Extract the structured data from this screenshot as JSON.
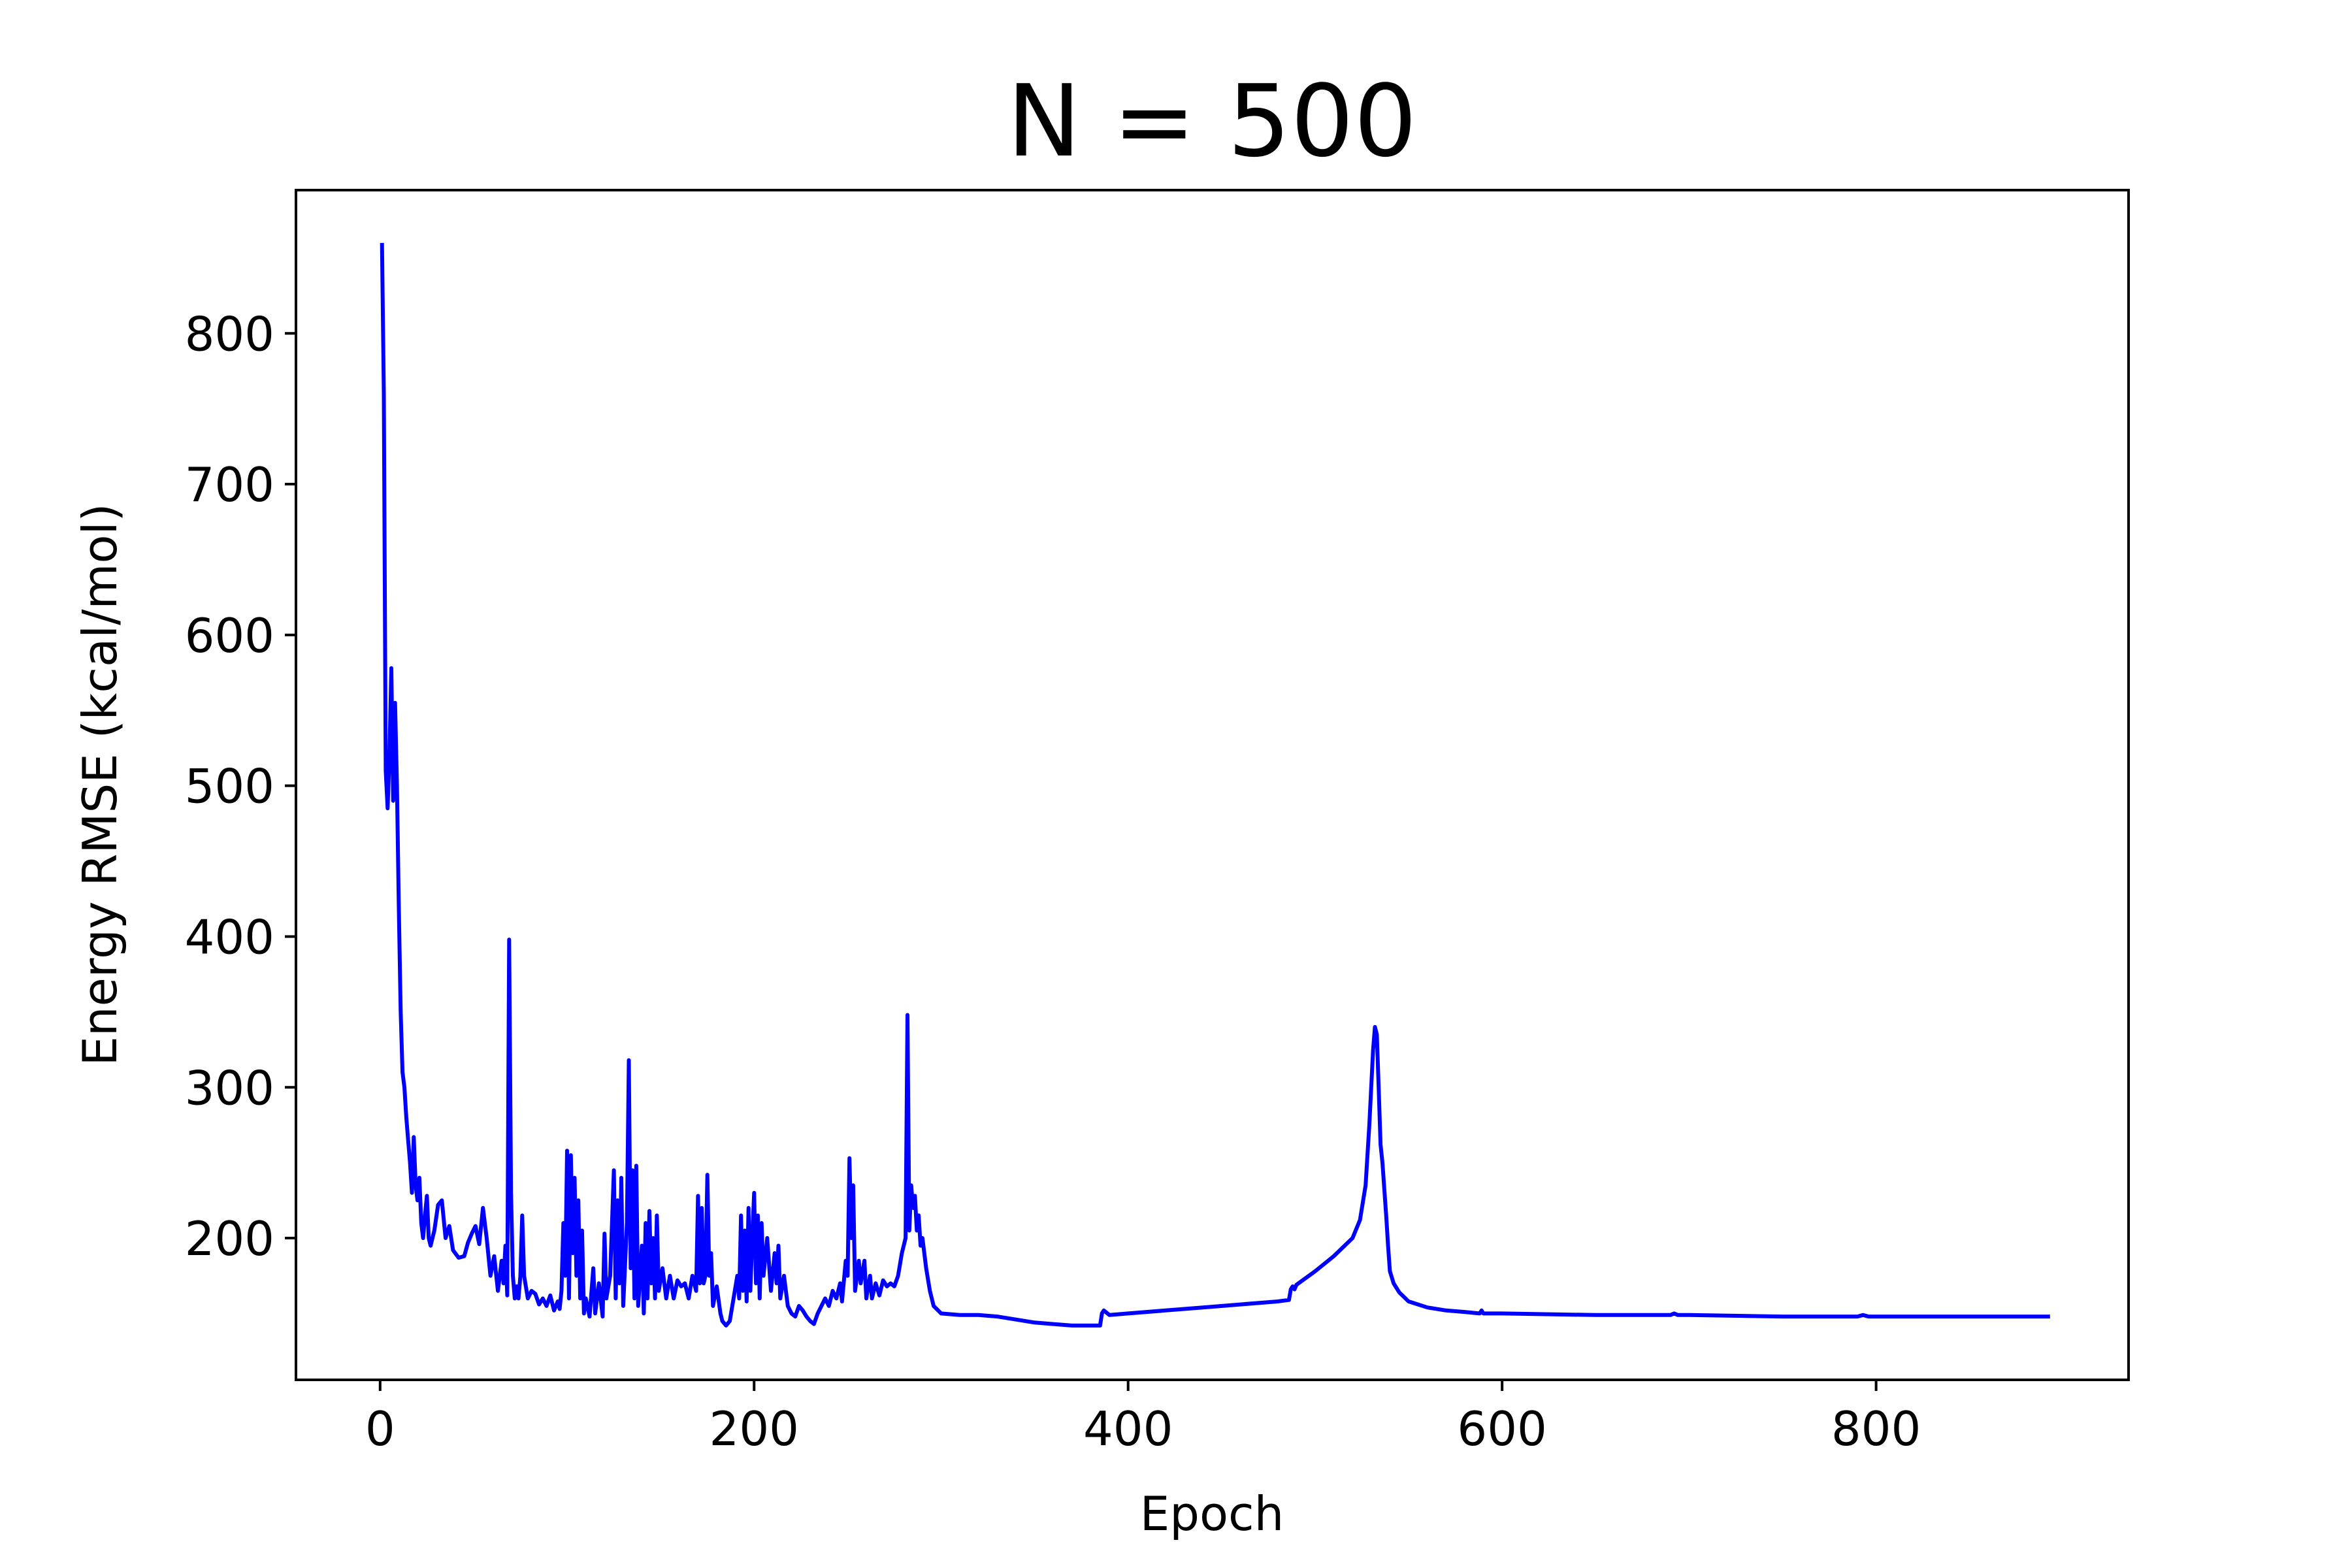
{
  "chart_data": {
    "type": "line",
    "title": "N = 500",
    "xlabel": "Epoch",
    "ylabel": "Energy RMSE (kcal/mol)",
    "xlim": [
      -45,
      935
    ],
    "ylim": [
      106,
      895
    ],
    "xticks": [
      0,
      200,
      400,
      600,
      800
    ],
    "yticks": [
      200,
      300,
      400,
      500,
      600,
      700,
      800
    ],
    "grid": false,
    "legend": null,
    "series": [
      {
        "color": "#0000ff",
        "points": [
          [
            1,
            860
          ],
          [
            2,
            760
          ],
          [
            3,
            510
          ],
          [
            4,
            485
          ],
          [
            5,
            520
          ],
          [
            6,
            578
          ],
          [
            7,
            490
          ],
          [
            8,
            555
          ],
          [
            9,
            500
          ],
          [
            10,
            420
          ],
          [
            11,
            350
          ],
          [
            12,
            310
          ],
          [
            13,
            300
          ],
          [
            14,
            280
          ],
          [
            15,
            265
          ],
          [
            16,
            250
          ],
          [
            17,
            230
          ],
          [
            18,
            267
          ],
          [
            19,
            235
          ],
          [
            20,
            225
          ],
          [
            21,
            240
          ],
          [
            22,
            210
          ],
          [
            23,
            200
          ],
          [
            24,
            215
          ],
          [
            25,
            228
          ],
          [
            26,
            200
          ],
          [
            27,
            195
          ],
          [
            29,
            205
          ],
          [
            31,
            222
          ],
          [
            33,
            225
          ],
          [
            35,
            200
          ],
          [
            37,
            208
          ],
          [
            39,
            192
          ],
          [
            42,
            187
          ],
          [
            45,
            188
          ],
          [
            47,
            197
          ],
          [
            49,
            203
          ],
          [
            51,
            208
          ],
          [
            53,
            196
          ],
          [
            55,
            220
          ],
          [
            57,
            200
          ],
          [
            59,
            175
          ],
          [
            61,
            188
          ],
          [
            63,
            165
          ],
          [
            65,
            185
          ],
          [
            66,
            170
          ],
          [
            67,
            195
          ],
          [
            68,
            162
          ],
          [
            69,
            398
          ],
          [
            70,
            230
          ],
          [
            71,
            175
          ],
          [
            72,
            160
          ],
          [
            73,
            168
          ],
          [
            74,
            160
          ],
          [
            75,
            175
          ],
          [
            76,
            215
          ],
          [
            77,
            175
          ],
          [
            79,
            160
          ],
          [
            81,
            165
          ],
          [
            83,
            163
          ],
          [
            85,
            156
          ],
          [
            87,
            160
          ],
          [
            89,
            155
          ],
          [
            91,
            162
          ],
          [
            93,
            152
          ],
          [
            95,
            158
          ],
          [
            96,
            153
          ],
          [
            97,
            165
          ],
          [
            98,
            210
          ],
          [
            99,
            175
          ],
          [
            100,
            258
          ],
          [
            101,
            160
          ],
          [
            102,
            255
          ],
          [
            103,
            190
          ],
          [
            104,
            240
          ],
          [
            105,
            175
          ],
          [
            106,
            225
          ],
          [
            107,
            160
          ],
          [
            108,
            205
          ],
          [
            109,
            150
          ],
          [
            110,
            160
          ],
          [
            112,
            148
          ],
          [
            114,
            180
          ],
          [
            115,
            150
          ],
          [
            117,
            170
          ],
          [
            119,
            148
          ],
          [
            120,
            203
          ],
          [
            121,
            160
          ],
          [
            123,
            175
          ],
          [
            125,
            245
          ],
          [
            126,
            160
          ],
          [
            127,
            225
          ],
          [
            128,
            170
          ],
          [
            129,
            240
          ],
          [
            130,
            155
          ],
          [
            132,
            210
          ],
          [
            133,
            318
          ],
          [
            134,
            180
          ],
          [
            135,
            245
          ],
          [
            136,
            160
          ],
          [
            137,
            248
          ],
          [
            138,
            155
          ],
          [
            140,
            195
          ],
          [
            141,
            150
          ],
          [
            142,
            210
          ],
          [
            143,
            160
          ],
          [
            144,
            218
          ],
          [
            145,
            170
          ],
          [
            146,
            200
          ],
          [
            147,
            160
          ],
          [
            148,
            215
          ],
          [
            149,
            165
          ],
          [
            151,
            180
          ],
          [
            153,
            160
          ],
          [
            155,
            175
          ],
          [
            157,
            160
          ],
          [
            159,
            172
          ],
          [
            161,
            168
          ],
          [
            163,
            170
          ],
          [
            165,
            160
          ],
          [
            167,
            175
          ],
          [
            169,
            165
          ],
          [
            170,
            228
          ],
          [
            171,
            170
          ],
          [
            172,
            220
          ],
          [
            173,
            170
          ],
          [
            174,
            175
          ],
          [
            175,
            242
          ],
          [
            176,
            175
          ],
          [
            177,
            190
          ],
          [
            178,
            155
          ],
          [
            180,
            168
          ],
          [
            182,
            150
          ],
          [
            183,
            145
          ],
          [
            185,
            142
          ],
          [
            187,
            145
          ],
          [
            189,
            160
          ],
          [
            191,
            175
          ],
          [
            192,
            160
          ],
          [
            193,
            215
          ],
          [
            194,
            165
          ],
          [
            195,
            205
          ],
          [
            196,
            158
          ],
          [
            197,
            220
          ],
          [
            198,
            165
          ],
          [
            199,
            200
          ],
          [
            200,
            230
          ],
          [
            201,
            170
          ],
          [
            202,
            215
          ],
          [
            203,
            160
          ],
          [
            204,
            210
          ],
          [
            205,
            175
          ],
          [
            207,
            200
          ],
          [
            209,
            165
          ],
          [
            211,
            190
          ],
          [
            212,
            170
          ],
          [
            213,
            195
          ],
          [
            214,
            160
          ],
          [
            216,
            175
          ],
          [
            218,
            155
          ],
          [
            220,
            150
          ],
          [
            222,
            148
          ],
          [
            224,
            155
          ],
          [
            226,
            152
          ],
          [
            228,
            148
          ],
          [
            230,
            145
          ],
          [
            232,
            143
          ],
          [
            234,
            150
          ],
          [
            236,
            155
          ],
          [
            238,
            160
          ],
          [
            240,
            155
          ],
          [
            242,
            165
          ],
          [
            244,
            160
          ],
          [
            246,
            170
          ],
          [
            247,
            158
          ],
          [
            249,
            185
          ],
          [
            250,
            175
          ],
          [
            251,
            253
          ],
          [
            252,
            200
          ],
          [
            253,
            235
          ],
          [
            254,
            165
          ],
          [
            256,
            185
          ],
          [
            257,
            170
          ],
          [
            259,
            185
          ],
          [
            260,
            160
          ],
          [
            262,
            175
          ],
          [
            263,
            160
          ],
          [
            265,
            170
          ],
          [
            267,
            162
          ],
          [
            269,
            172
          ],
          [
            271,
            168
          ],
          [
            273,
            170
          ],
          [
            275,
            168
          ],
          [
            277,
            175
          ],
          [
            279,
            190
          ],
          [
            281,
            200
          ],
          [
            282,
            348
          ],
          [
            283,
            205
          ],
          [
            284,
            235
          ],
          [
            285,
            220
          ],
          [
            286,
            228
          ],
          [
            287,
            205
          ],
          [
            288,
            215
          ],
          [
            289,
            195
          ],
          [
            290,
            200
          ],
          [
            292,
            180
          ],
          [
            294,
            165
          ],
          [
            296,
            155
          ],
          [
            300,
            150
          ],
          [
            310,
            149
          ],
          [
            320,
            149
          ],
          [
            330,
            148
          ],
          [
            340,
            146
          ],
          [
            350,
            144
          ],
          [
            360,
            143
          ],
          [
            370,
            142
          ],
          [
            385,
            142
          ],
          [
            386,
            150
          ],
          [
            387,
            152
          ],
          [
            388,
            151
          ],
          [
            390,
            149
          ],
          [
            400,
            150
          ],
          [
            420,
            152
          ],
          [
            440,
            154
          ],
          [
            460,
            156
          ],
          [
            480,
            158
          ],
          [
            486,
            159
          ],
          [
            487,
            166
          ],
          [
            488,
            168
          ],
          [
            489,
            166
          ],
          [
            490,
            169
          ],
          [
            500,
            178
          ],
          [
            510,
            188
          ],
          [
            520,
            200
          ],
          [
            524,
            212
          ],
          [
            527,
            235
          ],
          [
            529,
            275
          ],
          [
            531,
            325
          ],
          [
            532,
            340
          ],
          [
            533,
            335
          ],
          [
            534,
            300
          ],
          [
            535,
            262
          ],
          [
            536,
            250
          ],
          [
            538,
            215
          ],
          [
            539,
            195
          ],
          [
            540,
            178
          ],
          [
            542,
            170
          ],
          [
            545,
            164
          ],
          [
            550,
            158
          ],
          [
            560,
            154
          ],
          [
            570,
            152
          ],
          [
            580,
            151
          ],
          [
            588,
            150
          ],
          [
            589,
            152
          ],
          [
            590,
            150
          ],
          [
            600,
            150
          ],
          [
            650,
            149
          ],
          [
            690,
            149
          ],
          [
            692,
            150
          ],
          [
            694,
            149
          ],
          [
            700,
            149
          ],
          [
            750,
            148
          ],
          [
            790,
            148
          ],
          [
            793,
            149
          ],
          [
            796,
            148
          ],
          [
            850,
            148
          ],
          [
            893,
            148
          ]
        ]
      }
    ]
  }
}
